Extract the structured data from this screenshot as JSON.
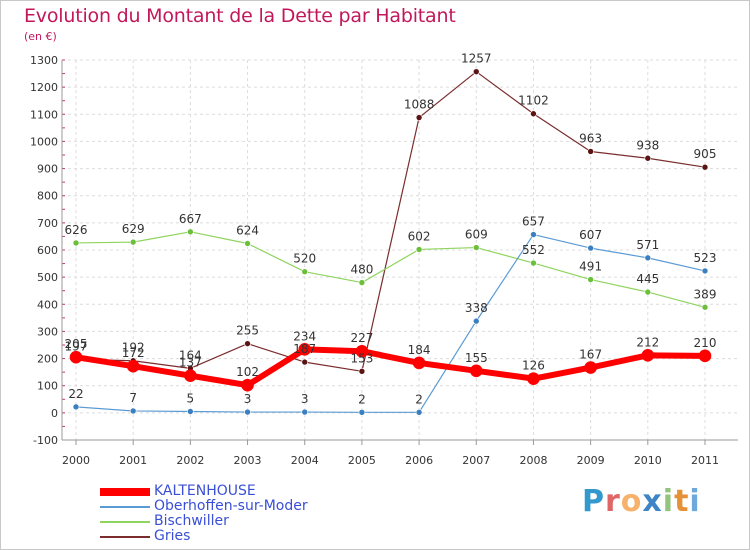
{
  "chart_data": {
    "type": "line",
    "title": "Evolution du Montant de la Dette par Habitant",
    "subtitle": "(en €)",
    "x": [
      "2000",
      "2001",
      "2002",
      "2003",
      "2004",
      "2005",
      "2006",
      "2007",
      "2008",
      "2009",
      "2010",
      "2011"
    ],
    "ylim": [
      -100,
      1300
    ],
    "yticks": [
      -100,
      0,
      100,
      200,
      300,
      400,
      500,
      600,
      700,
      800,
      900,
      1000,
      1100,
      1200,
      1300
    ],
    "grid": true,
    "legend_position": "bottom-left",
    "series": [
      {
        "name": "Gries",
        "color": "#7b2d2d",
        "marker": "#5a1414",
        "width": 1.2,
        "values": [
          197,
          192,
          164,
          255,
          187,
          153,
          1088,
          1257,
          1102,
          963,
          938,
          905
        ],
        "labels": [
          "197",
          "192",
          "164",
          "255",
          "187",
          "153",
          "1088",
          "1257",
          "1102",
          "963",
          "938",
          "905"
        ]
      },
      {
        "name": "Bischwiller",
        "color": "#8fd45e",
        "marker": "#6bbf3a",
        "width": 1.2,
        "values": [
          626,
          629,
          667,
          624,
          520,
          480,
          602,
          609,
          552,
          491,
          445,
          389
        ],
        "labels": [
          "626",
          "629",
          "667",
          "624",
          "520",
          "480",
          "602",
          "609",
          "552",
          "491",
          "445",
          "389"
        ]
      },
      {
        "name": "Oberhoffen-sur-Moder",
        "color": "#5b9bd5",
        "marker": "#3a7fc0",
        "width": 1.2,
        "values": [
          22,
          7,
          5,
          3,
          3,
          2,
          2,
          338,
          657,
          607,
          571,
          523
        ],
        "labels": [
          "22",
          "7",
          "5",
          "3",
          "3",
          "2",
          "2",
          "338",
          "657",
          "607",
          "571",
          "523"
        ]
      },
      {
        "name": "KALTENHOUSE",
        "color": "#ff0000",
        "marker": "#ff0000",
        "width": 6,
        "values": [
          205,
          172,
          137,
          102,
          234,
          227,
          184,
          155,
          126,
          167,
          212,
          210
        ],
        "labels": [
          "205",
          "172",
          "137",
          "102",
          "234",
          "227",
          "184",
          "155",
          "126",
          "167",
          "212",
          "210"
        ]
      }
    ],
    "legend_order": [
      "KALTENHOUSE",
      "Oberhoffen-sur-Moder",
      "Bischwiller",
      "Gries"
    ]
  },
  "brand": {
    "text": "Proxiti",
    "letters": [
      "P",
      "r",
      "o",
      "x",
      "i",
      "t",
      "i"
    ],
    "colors": [
      "#3399cc",
      "#e06666",
      "#f6b26b",
      "#3d85c6",
      "#93c47d",
      "#e69138",
      "#6fa8dc"
    ]
  }
}
